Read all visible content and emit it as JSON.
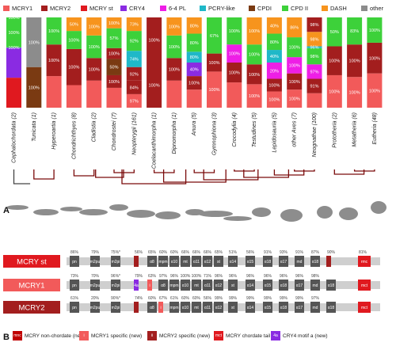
{
  "legend": [
    {
      "label": "MCRY1",
      "color": "#f25a5a"
    },
    {
      "label": "MCRY2",
      "color": "#a31e1e"
    },
    {
      "label": "MCRY st",
      "color": "#e0191f"
    },
    {
      "label": "CRY4",
      "color": "#8a2be2"
    },
    {
      "label": "6-4 PL",
      "color": "#ee1ee6"
    },
    {
      "label": "PCRY-like",
      "color": "#1fb8c8"
    },
    {
      "label": "CPDI",
      "color": "#7a3a12"
    },
    {
      "label": "CPD II",
      "color": "#3dd13a"
    },
    {
      "label": "DASH",
      "color": "#f7941d"
    },
    {
      "label": "other",
      "color": "#8c8c8c"
    }
  ],
  "chart_data": {
    "type": "bar",
    "stacked": true,
    "ylim": [
      0,
      100
    ],
    "categories": [
      {
        "name": "Cephalochordata (2)",
        "pcts": [
          "100%",
          "100%",
          "100%"
        ]
      },
      {
        "name": "Tunicata (1)",
        "pcts": [
          "100%",
          "100%"
        ]
      },
      {
        "name": "Hyperoartia (1)",
        "pcts": [
          "100%",
          "100%"
        ]
      },
      {
        "name": "Chondrichthyes (8)",
        "pcts": [
          "50%",
          "100%",
          "100%"
        ]
      },
      {
        "name": "Cladistia (2)",
        "pcts": [
          "100%",
          "100%",
          "100%"
        ]
      },
      {
        "name": "Chondrostei (7)",
        "pcts": [
          "100%",
          "57%",
          "100%",
          "50%",
          "100%"
        ]
      },
      {
        "name": "Neopterygii (161)",
        "pcts": [
          "73%",
          "92%",
          "74%",
          "92%",
          "84%",
          "97%"
        ]
      },
      {
        "name": "Coelacanthimorpha (1)",
        "pcts": [
          "100%",
          "100%"
        ]
      },
      {
        "name": "Dipnomorpha (1)",
        "pcts": [
          "100%",
          "100%",
          "100%"
        ]
      },
      {
        "name": "Anura (5)",
        "pcts": [
          "80%",
          "80%",
          "80%",
          "40%",
          "100%"
        ]
      },
      {
        "name": "Gymnophiona (3)",
        "pcts": [
          "67%",
          "100%",
          "100%"
        ]
      },
      {
        "name": "Crocodylia (4)",
        "pcts": [
          "100%",
          "100%",
          "100%"
        ]
      },
      {
        "name": "Testudines (5)",
        "pcts": [
          "100%",
          "100%",
          "100%",
          "100%"
        ]
      },
      {
        "name": "Lepidosauria (5)",
        "pcts": [
          "40%",
          "80%",
          "40%",
          "20%",
          "100%",
          "100%"
        ]
      },
      {
        "name": "other Aves (7)",
        "pcts": [
          "86%",
          "100%",
          "100%",
          "100%",
          "100%"
        ]
      },
      {
        "name": "Neognathae (100)",
        "pcts": [
          "98%",
          "98%",
          "96%",
          "98%",
          "97%",
          "91%"
        ]
      },
      {
        "name": "Prototheria (2)",
        "pcts": [
          "50%",
          "100%",
          "100%"
        ]
      },
      {
        "name": "Metatheria (6)",
        "pcts": [
          "83%",
          "100%",
          "100%"
        ]
      },
      {
        "name": "Eutheria (48)",
        "pcts": [
          "100%",
          "100%",
          "100%"
        ]
      }
    ]
  },
  "panelA": {
    "label": "A"
  },
  "panelB": {
    "label": "B",
    "rows": [
      {
        "name": "MCRY st",
        "color": "#e0191f",
        "pcts": [
          "86%",
          "79%",
          "75%*",
          "56%",
          "65%",
          "60%",
          "60%",
          "66%",
          "66%",
          "66%",
          "65%",
          "51%",
          "56%",
          "91%",
          "93%",
          "91%",
          "87%",
          "90%",
          "81%"
        ],
        "segs": [
          "pn",
          "m2pu",
          "m2pi",
          "",
          "α8",
          "mpm",
          "α10",
          "mt",
          "α11",
          "α12",
          "st",
          "α14",
          "α15",
          "α18",
          "α17",
          "md",
          "α18",
          "",
          "rmc"
        ]
      },
      {
        "name": "MCRY1",
        "color": "#f25a5a",
        "pcts": [
          "73%",
          "70%",
          "96%*",
          "79%",
          "63%",
          "97%",
          "96%",
          "100%",
          "100%",
          "71%",
          "96%",
          "96%",
          "96%",
          "96%",
          "96%",
          "96%",
          "98%"
        ],
        "segs": [
          "pn",
          "m2pu",
          "m2pi",
          "4a",
          "i",
          "α8",
          "mpm",
          "α10",
          "mt",
          "α11",
          "α12",
          "st",
          "α14",
          "α15",
          "α18",
          "α17",
          "md",
          "α18",
          "mct"
        ]
      },
      {
        "name": "MCRY2",
        "color": "#a31e1e",
        "pcts": [
          "61%",
          "20%",
          "90%*",
          "74%",
          "60%",
          "67%",
          "61%",
          "60%",
          "60%",
          "56%",
          "99%",
          "99%",
          "99%",
          "99%",
          "99%",
          "99%",
          "97%"
        ],
        "segs": [
          "pn",
          "m2pu",
          "m2pi",
          "",
          "α8",
          "i",
          "mpm",
          "α10",
          "mt",
          "α11",
          "α12",
          "st",
          "α14",
          "α15",
          "α18",
          "α17",
          "md",
          "α18",
          "mct"
        ]
      }
    ],
    "legend": [
      {
        "badge": "mnc",
        "label": "MCRY non-chordate (new)",
        "color": "#c00000"
      },
      {
        "badge": "i",
        "label": "MCRY1 specific (new)",
        "color": "#f25a5a"
      },
      {
        "badge": "ii",
        "label": "MCRY2 specific (new)",
        "color": "#a31e1e"
      },
      {
        "badge": "mct",
        "label": "MCRY chordate tail",
        "color": "#e0191f"
      },
      {
        "badge": "4a",
        "label": "CRY4 motif a (new)",
        "color": "#8a2be2"
      }
    ]
  }
}
